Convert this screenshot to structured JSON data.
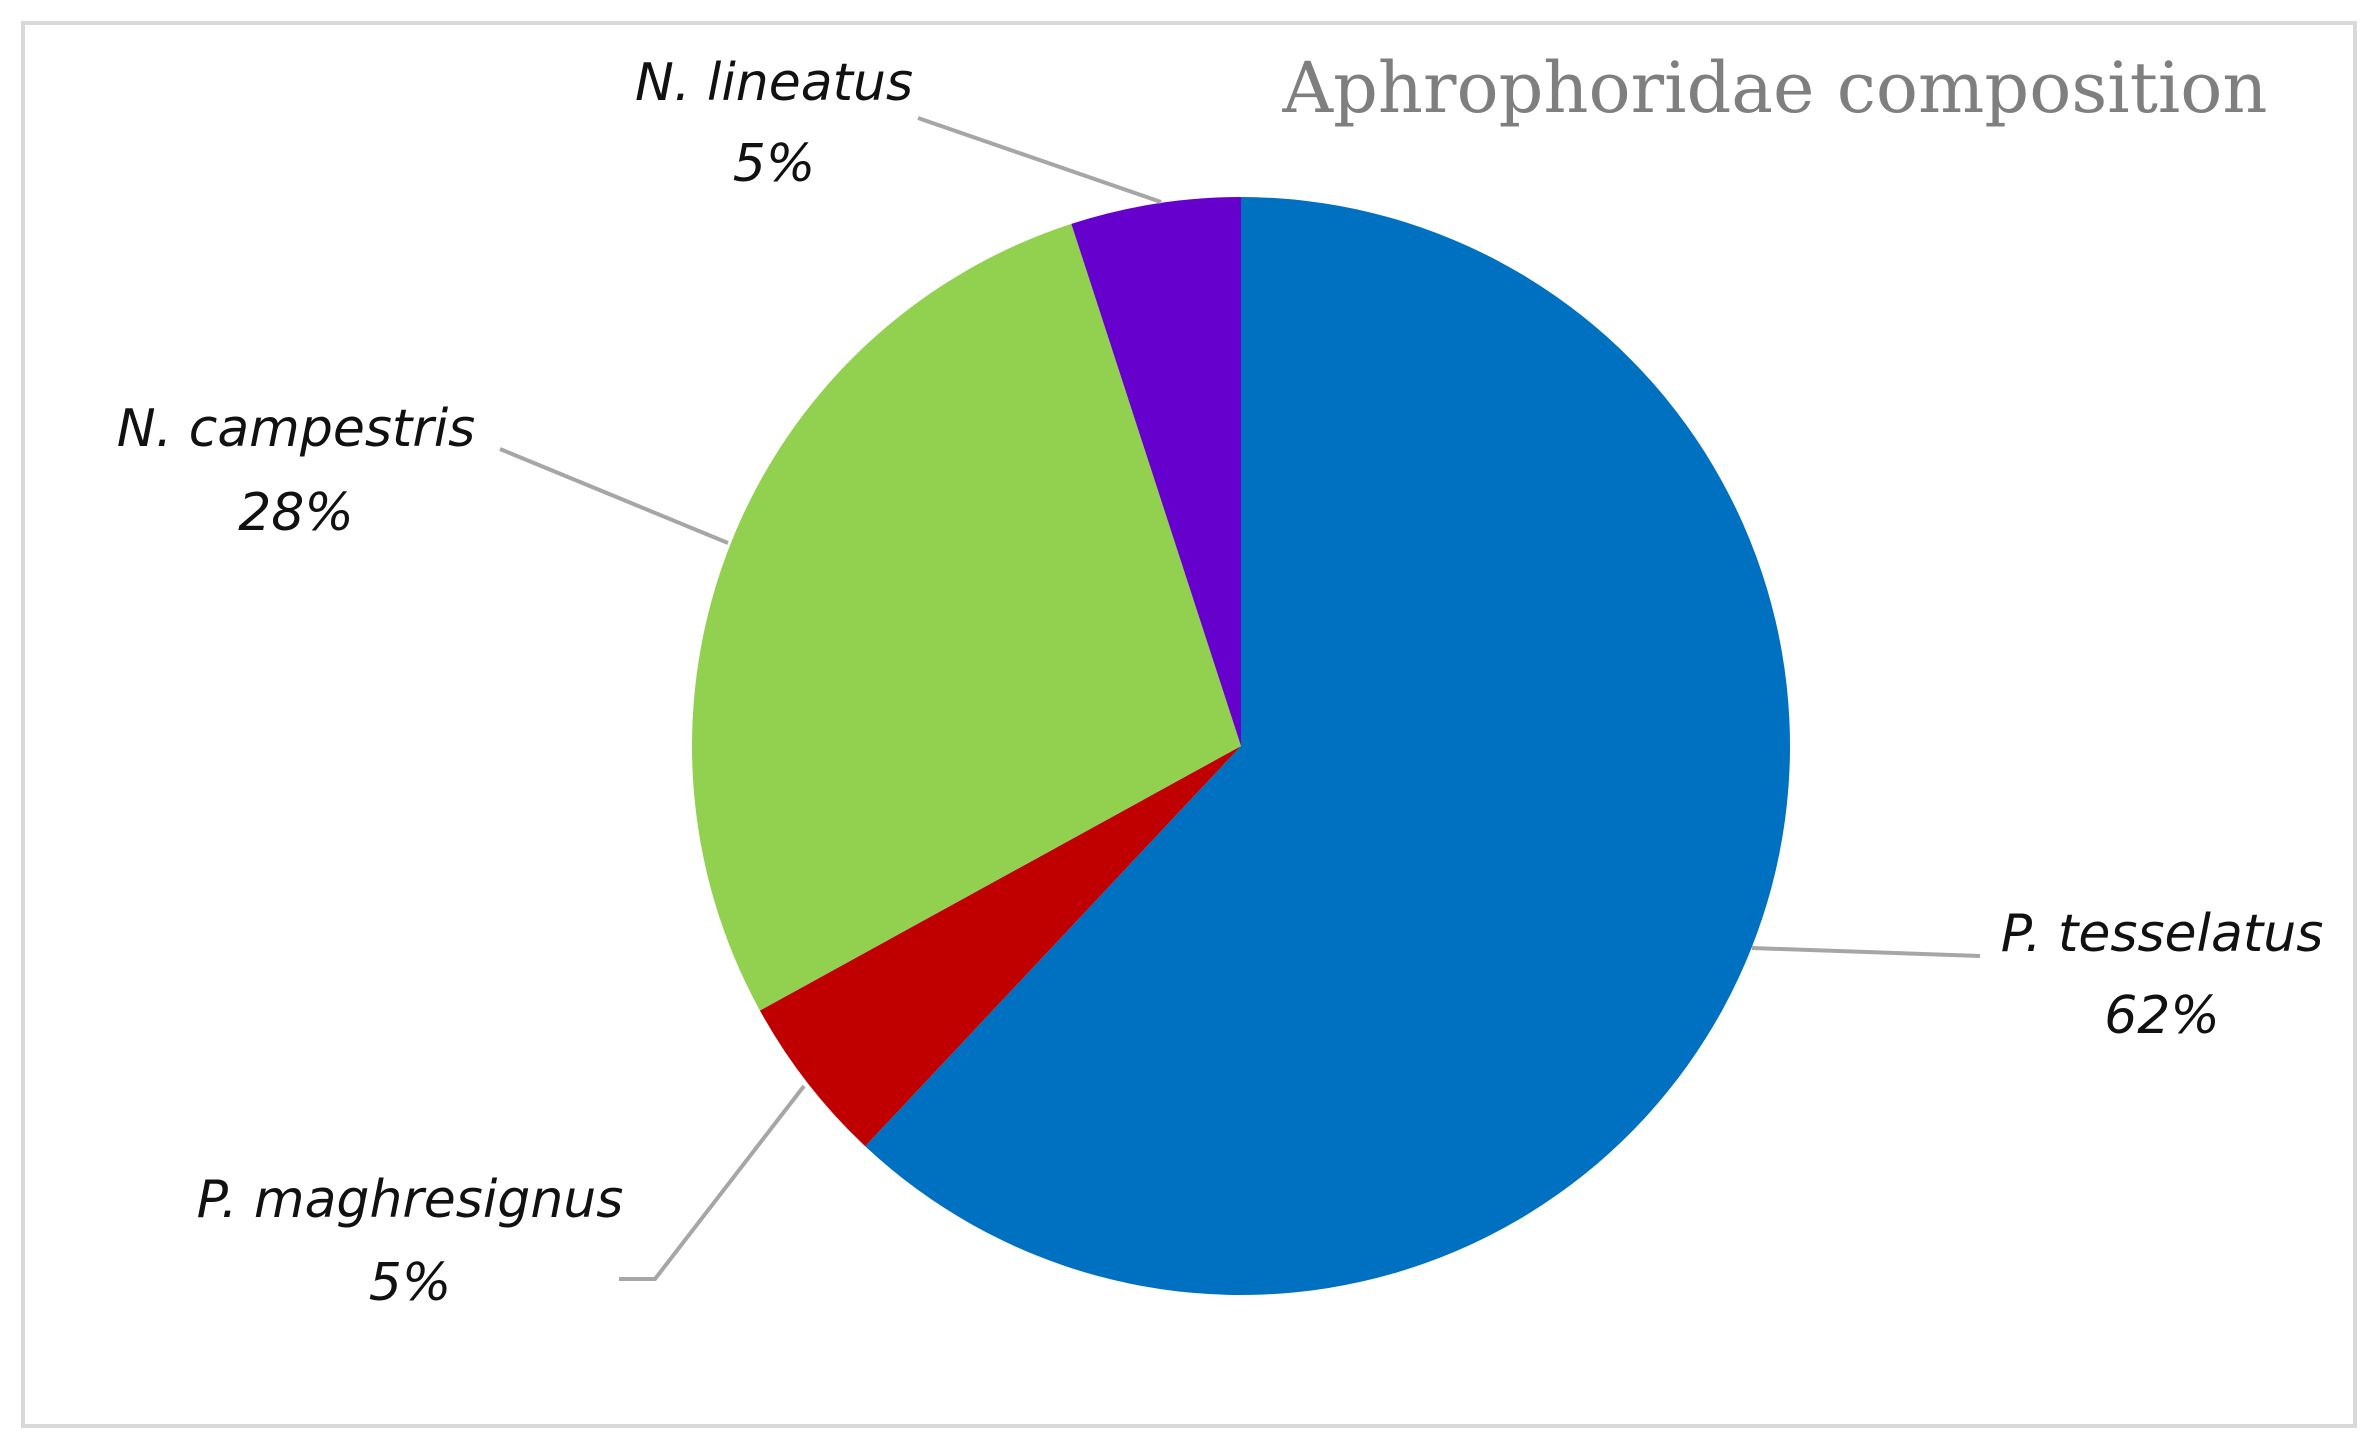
{
  "chart_data": {
    "type": "pie",
    "title": "Aphrophoridae composition",
    "categories": [
      "P. tesselatus",
      "P. maghresignus",
      "N. campestris",
      "N. lineatus"
    ],
    "values": [
      62,
      5,
      28,
      5
    ],
    "value_labels": [
      "62%",
      "5%",
      "28%",
      "5%"
    ],
    "colors": [
      "#0070c0",
      "#c00000",
      "#92d050",
      "#6600cc"
    ]
  }
}
